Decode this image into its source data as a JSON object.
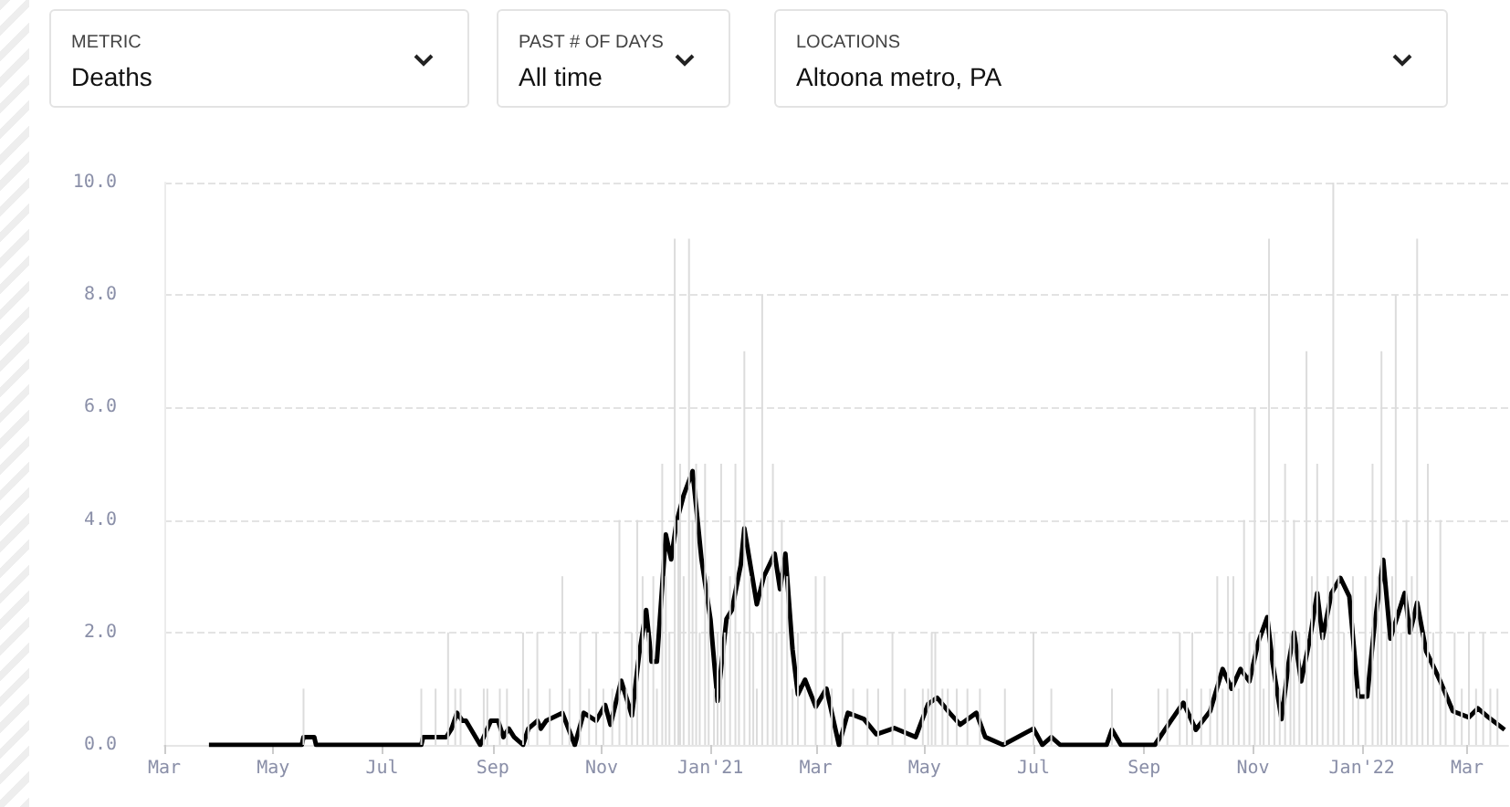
{
  "chart_data": {
    "type": "bar",
    "grid": "y",
    "marker": "none",
    "annotations": [
      "METRIC",
      "Deaths",
      "PAST # OF DAYS",
      "All time",
      "LOCATIONS",
      "Altoona metro, PA"
    ],
    "xlim": [
      "2020-03-01",
      "2022-03-24"
    ],
    "xticks": [
      {
        "value": "2020-03-01",
        "label": "Mar"
      },
      {
        "value": "2020-05-01",
        "label": "May"
      },
      {
        "value": "2020-07-01",
        "label": "Jul"
      },
      {
        "value": "2020-09-01",
        "label": "Sep"
      },
      {
        "value": "2020-11-01",
        "label": "Nov"
      },
      {
        "value": "2021-01-01",
        "label": "Jan'21"
      },
      {
        "value": "2021-03-01",
        "label": "Mar"
      },
      {
        "value": "2021-05-01",
        "label": "May"
      },
      {
        "value": "2021-07-01",
        "label": "Jul"
      },
      {
        "value": "2021-09-01",
        "label": "Sep"
      },
      {
        "value": "2021-11-01",
        "label": "Nov"
      },
      {
        "value": "2022-01-01",
        "label": "Jan'22"
      },
      {
        "value": "2022-03-01",
        "label": "Mar"
      }
    ],
    "ylim": [
      0,
      10
    ],
    "yticks": [
      {
        "value": 0,
        "label": "0.0"
      },
      {
        "value": 2,
        "label": "2.0"
      },
      {
        "value": 4,
        "label": "4.0"
      },
      {
        "value": 6,
        "label": "6.0"
      },
      {
        "value": 8,
        "label": "8.0"
      },
      {
        "value": 10,
        "label": "10.0"
      }
    ],
    "series": [
      {
        "color": "#dcdcdc",
        "x": [
          "2020-05-18",
          "2020-07-23",
          "2020-07-31",
          "2020-08-07",
          "2020-08-11",
          "2020-08-14",
          "2020-08-27",
          "2020-08-29",
          "2020-09-05",
          "2020-09-09",
          "2020-09-18",
          "2020-09-21",
          "2020-09-26",
          "2020-10-03",
          "2020-10-10",
          "2020-10-14",
          "2020-10-20",
          "2020-10-25",
          "2020-10-29",
          "2020-11-02",
          "2020-11-07",
          "2020-11-11",
          "2020-11-15",
          "2020-11-18",
          "2020-11-21",
          "2020-11-24",
          "2020-11-27",
          "2020-11-30",
          "2020-12-02",
          "2020-12-05",
          "2020-12-07",
          "2020-12-09",
          "2020-12-12",
          "2020-12-14",
          "2020-12-15",
          "2020-12-17",
          "2020-12-20",
          "2020-12-22",
          "2020-12-24",
          "2020-12-26",
          "2020-12-29",
          "2020-12-31",
          "2021-01-03",
          "2021-01-05",
          "2021-01-07",
          "2021-01-09",
          "2021-01-12",
          "2021-01-15",
          "2021-01-17",
          "2021-01-20",
          "2021-01-23",
          "2021-01-25",
          "2021-01-27",
          "2021-01-30",
          "2021-02-02",
          "2021-02-05",
          "2021-02-07",
          "2021-02-10",
          "2021-02-13",
          "2021-02-16",
          "2021-02-19",
          "2021-02-23",
          "2021-03-01",
          "2021-03-06",
          "2021-03-10",
          "2021-03-16",
          "2021-03-22",
          "2021-03-30",
          "2021-04-05",
          "2021-04-13",
          "2021-04-20",
          "2021-04-30",
          "2021-05-03",
          "2021-05-05",
          "2021-05-07",
          "2021-05-11",
          "2021-05-14",
          "2021-05-19",
          "2021-05-25",
          "2021-06-01",
          "2021-06-15",
          "2021-07-01",
          "2021-07-11",
          "2021-08-14",
          "2021-09-09",
          "2021-09-14",
          "2021-09-21",
          "2021-09-25",
          "2021-09-28",
          "2021-10-03",
          "2021-10-08",
          "2021-10-12",
          "2021-10-15",
          "2021-10-18",
          "2021-10-21",
          "2021-10-24",
          "2021-10-27",
          "2021-10-30",
          "2021-11-02",
          "2021-11-05",
          "2021-11-07",
          "2021-11-10",
          "2021-11-13",
          "2021-11-16",
          "2021-11-19",
          "2021-11-22",
          "2021-11-24",
          "2021-11-27",
          "2021-12-01",
          "2021-12-04",
          "2021-12-07",
          "2021-12-10",
          "2021-12-13",
          "2021-12-16",
          "2021-12-19",
          "2021-12-22",
          "2021-12-27",
          "2021-12-30",
          "2022-01-03",
          "2022-01-07",
          "2022-01-10",
          "2022-01-12",
          "2022-01-15",
          "2022-01-18",
          "2022-01-20",
          "2022-01-23",
          "2022-01-26",
          "2022-01-29",
          "2022-02-01",
          "2022-02-04",
          "2022-02-07",
          "2022-02-10",
          "2022-02-14",
          "2022-02-17",
          "2022-02-22",
          "2022-02-26",
          "2022-03-02",
          "2022-03-06",
          "2022-03-10",
          "2022-03-14",
          "2022-03-18"
        ],
        "values": [
          1,
          1,
          1,
          2,
          1,
          1,
          1,
          1,
          1,
          1,
          2,
          1,
          2,
          1,
          3,
          1,
          2,
          1,
          2,
          1,
          1,
          4,
          1,
          2,
          4,
          3,
          2,
          3,
          1,
          5,
          3,
          2,
          9,
          4,
          5,
          3,
          9,
          4,
          5,
          2,
          5,
          3,
          1,
          2,
          5,
          2,
          3,
          5,
          2,
          7,
          3,
          2,
          1,
          8,
          3,
          5,
          2,
          4,
          3,
          1,
          2,
          1,
          3,
          3,
          1,
          2,
          1,
          1,
          1,
          2,
          1,
          1,
          1,
          2,
          2,
          1,
          1,
          1,
          1,
          1,
          1,
          2,
          1,
          1,
          1,
          1,
          2,
          1,
          2,
          1,
          1,
          3,
          1,
          3,
          3,
          1,
          4,
          2,
          6,
          2,
          1,
          9,
          2,
          1,
          5,
          2,
          4,
          2,
          7,
          3,
          5,
          2,
          3,
          10,
          3,
          2,
          3,
          1,
          3,
          5,
          3,
          7,
          2,
          3,
          8,
          2,
          4,
          3,
          9,
          2,
          5,
          2,
          4,
          1,
          2,
          1,
          2,
          1,
          2,
          1,
          1
        ]
      },
      {
        "type": "line",
        "color": "#000000",
        "x": [
          "2020-03-26",
          "2020-05-17",
          "2020-05-18",
          "2020-05-24",
          "2020-05-25",
          "2020-07-23",
          "2020-07-24",
          "2020-08-06",
          "2020-08-09",
          "2020-08-12",
          "2020-08-15",
          "2020-08-17",
          "2020-08-25",
          "2020-08-31",
          "2020-09-04",
          "2020-09-07",
          "2020-09-10",
          "2020-09-13",
          "2020-09-18",
          "2020-09-21",
          "2020-09-26",
          "2020-09-28",
          "2020-10-01",
          "2020-10-10",
          "2020-10-17",
          "2020-10-22",
          "2020-10-29",
          "2020-11-03",
          "2020-11-06",
          "2020-11-12",
          "2020-11-18",
          "2020-11-22",
          "2020-11-26",
          "2020-11-29",
          "2020-12-02",
          "2020-12-07",
          "2020-12-10",
          "2020-12-13",
          "2020-12-17",
          "2020-12-22",
          "2020-12-27",
          "2021-01-01",
          "2021-01-05",
          "2021-01-10",
          "2021-01-13",
          "2021-01-18",
          "2021-01-20",
          "2021-01-27",
          "2021-01-31",
          "2021-02-06",
          "2021-02-09",
          "2021-02-12",
          "2021-02-16",
          "2021-02-19",
          "2021-02-23",
          "2021-03-01",
          "2021-03-07",
          "2021-03-14",
          "2021-03-19",
          "2021-03-28",
          "2021-04-04",
          "2021-04-14",
          "2021-04-26",
          "2021-05-03",
          "2021-05-08",
          "2021-05-15",
          "2021-05-21",
          "2021-05-30",
          "2021-06-04",
          "2021-06-14",
          "2021-07-01",
          "2021-07-06",
          "2021-07-11",
          "2021-07-16",
          "2021-08-11",
          "2021-08-14",
          "2021-08-19",
          "2021-09-07",
          "2021-09-16",
          "2021-09-23",
          "2021-09-30",
          "2021-10-08",
          "2021-10-15",
          "2021-10-20",
          "2021-10-25",
          "2021-10-30",
          "2021-11-04",
          "2021-11-09",
          "2021-11-12",
          "2021-11-17",
          "2021-11-21",
          "2021-11-24",
          "2021-11-28",
          "2021-12-03",
          "2021-12-07",
          "2021-12-10",
          "2021-12-15",
          "2021-12-20",
          "2021-12-25",
          "2021-12-30",
          "2022-01-04",
          "2022-01-08",
          "2022-01-13",
          "2022-01-17",
          "2022-01-25",
          "2022-01-28",
          "2022-02-01",
          "2022-02-06",
          "2022-02-14",
          "2022-02-21",
          "2022-03-02",
          "2022-03-07",
          "2022-03-13",
          "2022-03-22"
        ],
        "values": [
          0,
          0,
          0.14,
          0.14,
          0,
          0,
          0.14,
          0.14,
          0.29,
          0.57,
          0.43,
          0.43,
          0,
          0.43,
          0.43,
          0.14,
          0.29,
          0.14,
          0,
          0.29,
          0.43,
          0.29,
          0.43,
          0.57,
          0,
          0.57,
          0.43,
          0.71,
          0.36,
          1.14,
          0.52,
          1.6,
          2.4,
          1.48,
          1.48,
          3.74,
          3.3,
          3.96,
          4.44,
          4.87,
          3.3,
          2.24,
          0.78,
          2.24,
          2.4,
          3.2,
          3.85,
          2.5,
          3.0,
          3.4,
          2.77,
          3.4,
          1.7,
          0.9,
          1.16,
          0.68,
          1.0,
          0,
          0.57,
          0.46,
          0.19,
          0.3,
          0.14,
          0.73,
          0.84,
          0.57,
          0.36,
          0.57,
          0.14,
          0,
          0.29,
          0,
          0.14,
          0,
          0,
          0.27,
          0,
          0,
          0.43,
          0.75,
          0.27,
          0.6,
          1.35,
          1.0,
          1.35,
          1.13,
          1.83,
          2.27,
          1.46,
          0.46,
          1.46,
          2.0,
          1.13,
          1.9,
          2.7,
          1.9,
          2.7,
          2.97,
          2.64,
          0.86,
          0.86,
          2.1,
          3.29,
          1.89,
          2.7,
          2.0,
          2.53,
          1.67,
          1.13,
          0.6,
          0.49,
          0.65,
          0.49,
          0.27
        ]
      }
    ]
  }
}
